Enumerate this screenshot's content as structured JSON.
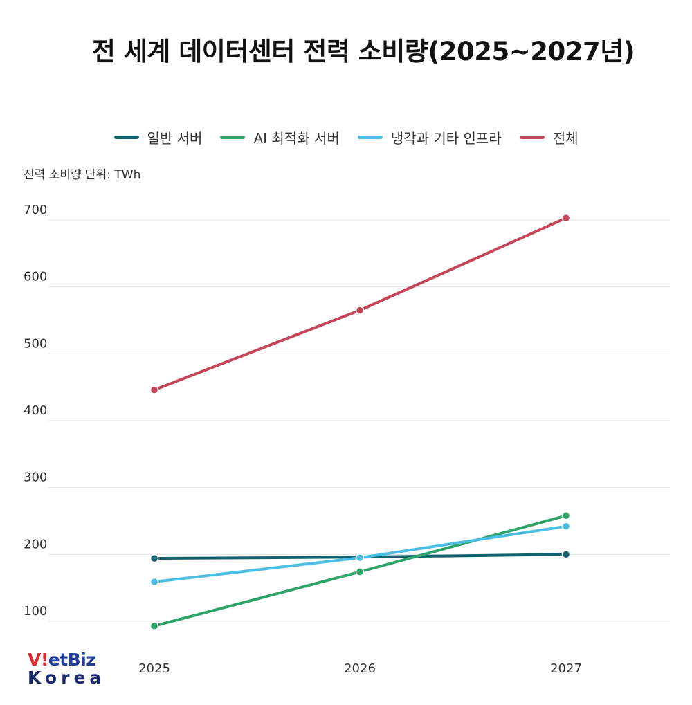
{
  "title": "전 세계 데이터센터 전력 소비량(2025~2027년)",
  "unit_note": "전력 소비량 단위: TWh",
  "logo": {
    "top": "VietBiz",
    "bottom": "Korea"
  },
  "colors": {
    "general": "#13626f",
    "ai": "#2ea36a",
    "cooling": "#4dbee3",
    "total": "#c54559",
    "grid": "#e3e3e3"
  },
  "chart_data": {
    "type": "line",
    "title": "전 세계 데이터센터 전력 소비량(2025~2027년)",
    "xlabel": "",
    "ylabel": "전력 소비량 단위: TWh",
    "categories": [
      "2025",
      "2026",
      "2027"
    ],
    "y_ticks": [
      "100",
      "200",
      "300",
      "400",
      "500",
      "600",
      "700"
    ],
    "ylim": [
      100,
      700
    ],
    "grid": true,
    "legend_position": "top-center",
    "series": [
      {
        "name": "일반 서버",
        "color": "#13626f",
        "values": [
          194,
          196,
          200
        ]
      },
      {
        "name": "AI 최적화 서버",
        "color": "#2ea36a",
        "values": [
          93,
          174,
          258
        ]
      },
      {
        "name": "냉각과 기타 인프라",
        "color": "#4dbee3",
        "values": [
          159,
          195,
          242
        ]
      },
      {
        "name": "전체",
        "color": "#c54559",
        "values": [
          446,
          565,
          703
        ]
      }
    ]
  }
}
